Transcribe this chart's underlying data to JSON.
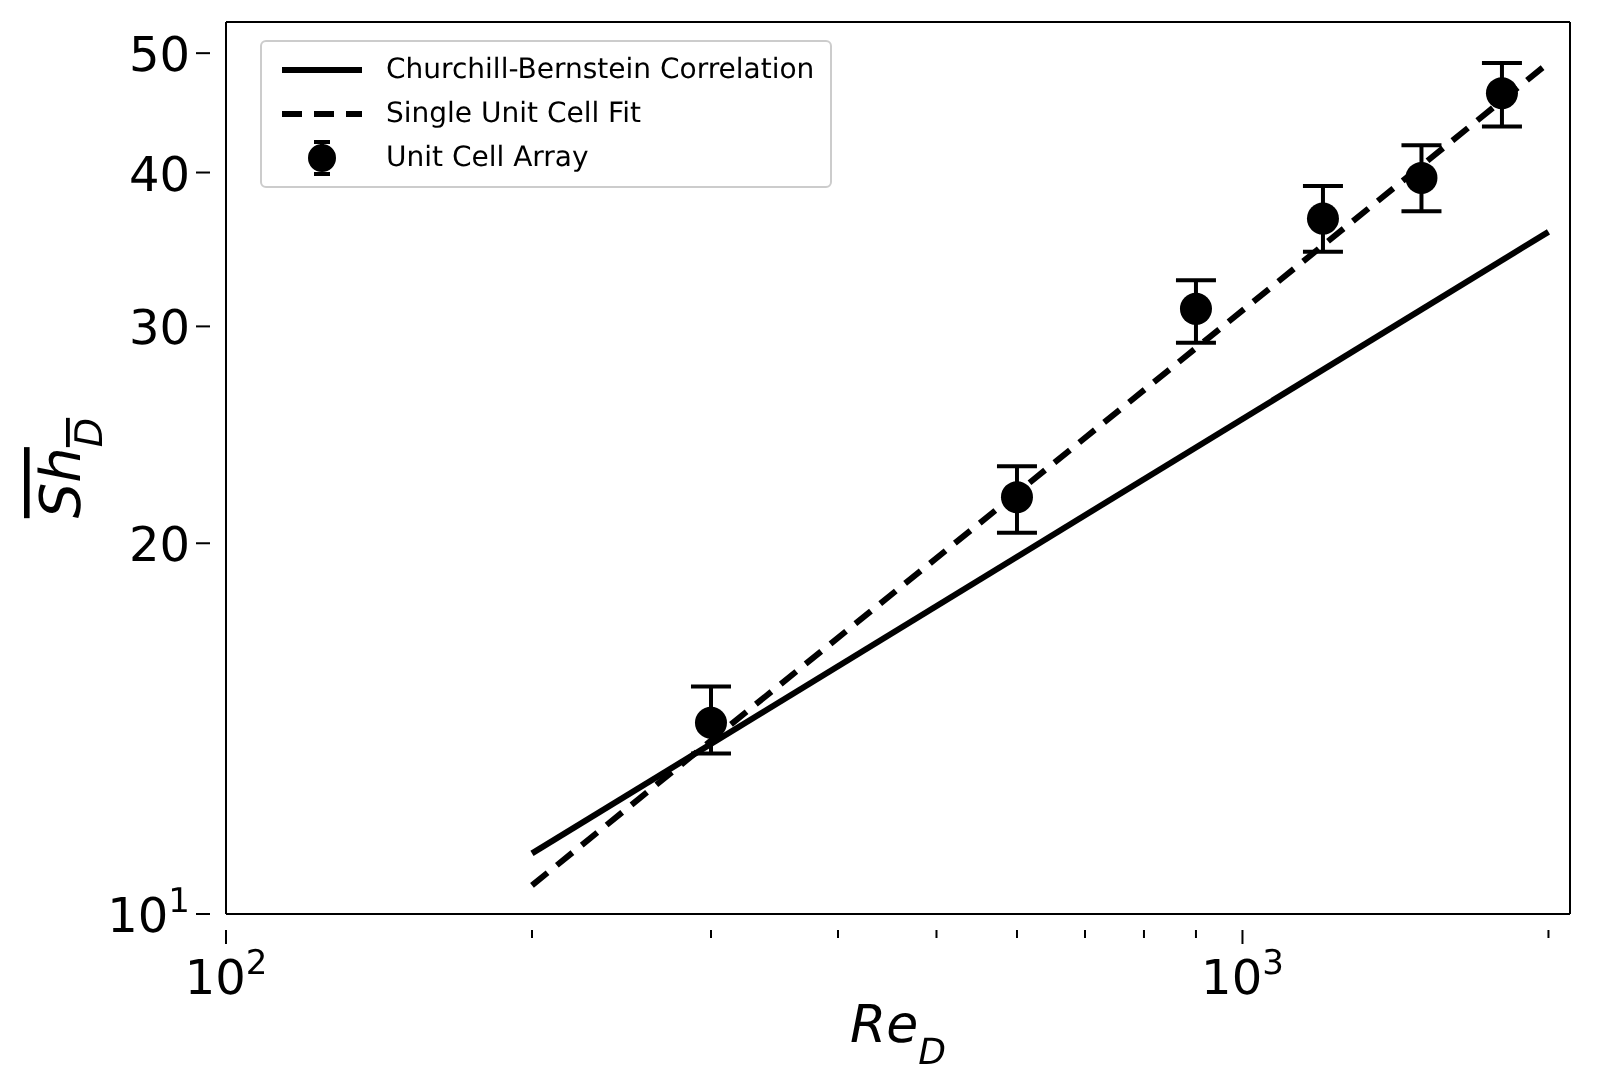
{
  "chart_data": {
    "type": "line",
    "xlabel": "Re$_{D}$",
    "ylabel": "Sh$_{D}$",
    "log": "xy",
    "xlim": [
      100,
      2100
    ],
    "ylim": [
      10,
      53
    ],
    "xticks": [
      {
        "value": 100,
        "label": "10$^{2}$"
      },
      {
        "value": 1000,
        "label": "10$^{3}$"
      },
      {
        "value": 200,
        "label": null
      },
      {
        "value": 300,
        "label": null
      },
      {
        "value": 400,
        "label": null
      },
      {
        "value": 500,
        "label": null
      },
      {
        "value": 600,
        "label": null
      },
      {
        "value": 700,
        "label": null
      },
      {
        "value": 800,
        "label": null
      },
      {
        "value": 900,
        "label": null
      },
      {
        "value": 2000,
        "label": null
      }
    ],
    "yticks": [
      {
        "value": 10,
        "label": "10$^{1}$"
      },
      20,
      30,
      40,
      50
    ],
    "grid": false,
    "legend": "top left",
    "series": [
      {
        "name": "Churchill-Bernstein Correlation",
        "color": "#000000",
        "line_style": "solid",
        "marker": "none",
        "x": [
          200,
          2000
        ],
        "values": [
          11.2,
          35.8
        ]
      },
      {
        "name": "Single Unit Cell Fit",
        "color": "#000000",
        "line_style": "dashed",
        "marker": "none",
        "x": [
          200,
          2000
        ],
        "values": [
          10.55,
          49.1
        ]
      },
      {
        "name": "Unit Cell Array",
        "type": "scatter",
        "color": "#000000",
        "marker": "circle",
        "x": [
          300,
          600,
          900,
          1200,
          1500,
          1800
        ],
        "values": [
          14.3,
          21.8,
          31.0,
          36.7,
          39.6,
          46.4
        ],
        "errors": [
          [
            13.5,
            15.3
          ],
          [
            20.4,
            23.1
          ],
          [
            29.1,
            32.7
          ],
          [
            34.5,
            39.0
          ],
          [
            37.2,
            42.1
          ],
          [
            43.6,
            49.1
          ]
        ]
      }
    ]
  }
}
